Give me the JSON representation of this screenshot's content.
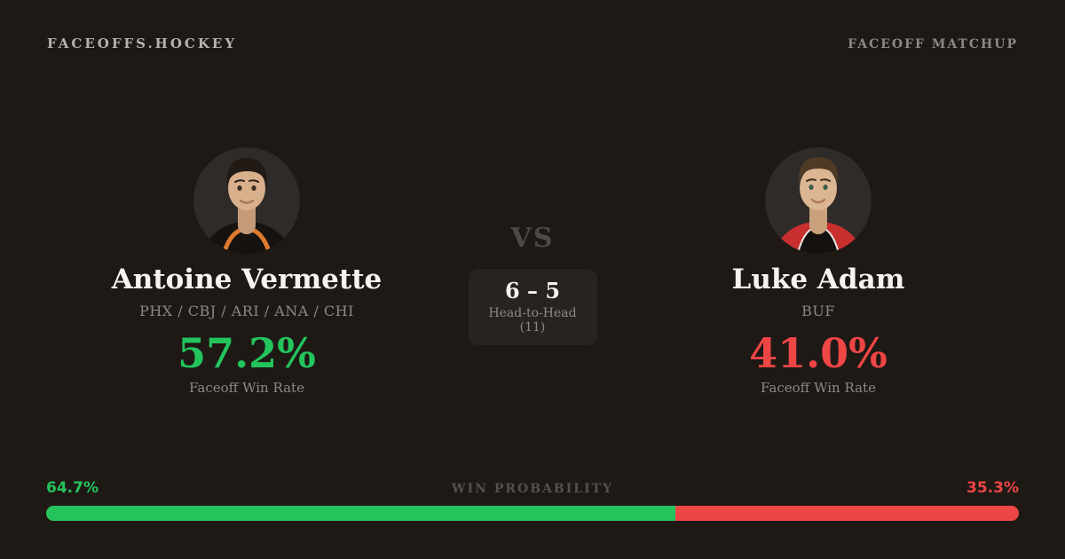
{
  "header": {
    "brand": "FACEOFFS.HOCKEY",
    "page_label": "FACEOFF MATCHUP"
  },
  "players": {
    "left": {
      "name": "Antoine Vermette",
      "teams": "PHX / CBJ / ARI / ANA / CHI",
      "win_rate": "57.2%",
      "win_rate_label": "Faceoff Win Rate"
    },
    "right": {
      "name": "Luke Adam",
      "teams": "BUF",
      "win_rate": "41.0%",
      "win_rate_label": "Faceoff Win Rate"
    }
  },
  "matchup": {
    "vs_label": "VS",
    "head_to_head_score": "6 – 5",
    "head_to_head_label": "Head-to-Head (11)"
  },
  "win_probability": {
    "label": "WIN PROBABILITY",
    "left_pct": "64.7%",
    "right_pct": "35.3%",
    "left_value": 64.7,
    "right_value": 35.3
  },
  "colors": {
    "background": "#1e1915",
    "green": "#24c45c",
    "red": "#ee4545",
    "box": "#282320"
  }
}
